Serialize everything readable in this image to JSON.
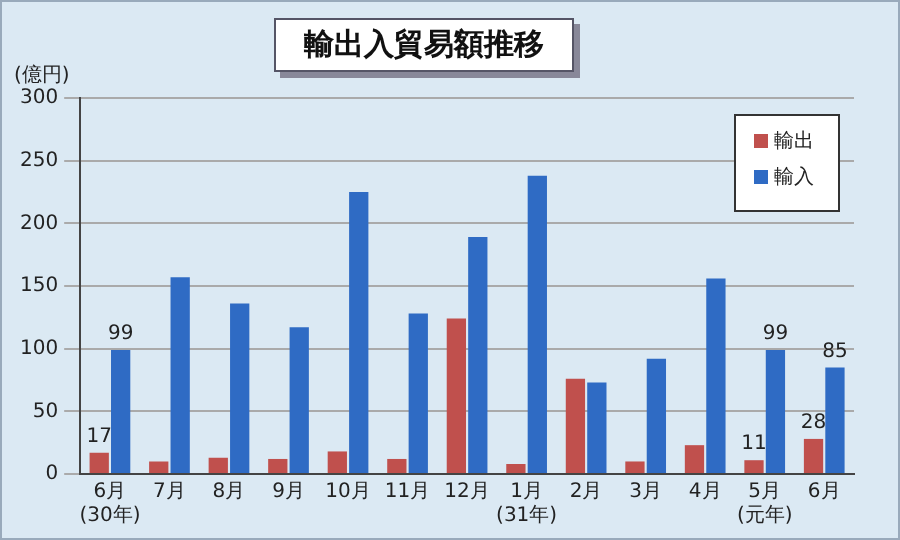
{
  "chart_data": {
    "type": "bar",
    "title": "輸出入貿易額推移",
    "ylabel": "(億円)",
    "categories": [
      "6月\n(30年)",
      "7月",
      "8月",
      "9月",
      "10月",
      "11月",
      "12月",
      "1月\n(31年)",
      "2月",
      "3月",
      "4月",
      "5月\n(元年)",
      "6月"
    ],
    "series": [
      {
        "name": "輸出",
        "color": "#c0504d",
        "values": [
          17,
          10,
          13,
          12,
          18,
          12,
          124,
          8,
          76,
          10,
          23,
          11,
          28
        ],
        "value_labels": [
          "17",
          null,
          null,
          null,
          null,
          null,
          null,
          null,
          null,
          null,
          null,
          "11",
          "28"
        ]
      },
      {
        "name": "輸入",
        "color": "#2f6bc4",
        "values": [
          99,
          157,
          136,
          117,
          225,
          128,
          189,
          238,
          73,
          92,
          156,
          99,
          85
        ],
        "value_labels": [
          "99",
          null,
          null,
          null,
          null,
          null,
          null,
          null,
          null,
          null,
          null,
          "99",
          "85"
        ]
      }
    ],
    "ylim": [
      0,
      300
    ],
    "yticks": [
      0,
      50,
      100,
      150,
      200,
      250,
      300
    ],
    "grid": "y",
    "legend": "top right"
  }
}
